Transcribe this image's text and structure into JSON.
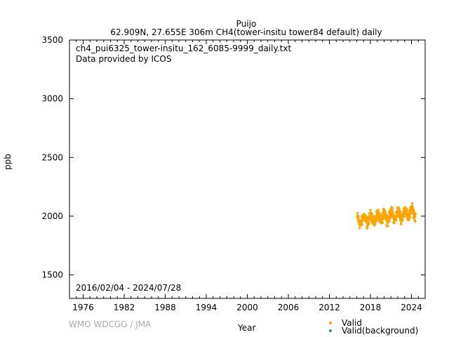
{
  "header": {
    "title_line1": "Puijo",
    "title_line2": "62.909N, 27.655E 306m    CH4(tower-insitu tower84 default) daily"
  },
  "annotations": {
    "filename": "ch4_pui6325_tower-insitu_162_6085-9999_daily.txt",
    "provider": "Data provided by ICOS",
    "date_range": "2016/02/04 - 2024/07/28"
  },
  "footer": {
    "watermark": "WMO WDCGG / JMA"
  },
  "legend": {
    "items": [
      {
        "label": "Valid",
        "color": "#FFA500",
        "marker": "diamond"
      },
      {
        "label": "Valid(background)",
        "color": "#2E8B57",
        "marker": "diamond"
      }
    ]
  },
  "chart_data": {
    "type": "scatter",
    "xlabel": "Year",
    "ylabel": "ppb",
    "xlim": [
      1974,
      2026
    ],
    "ylim": [
      1300,
      3500
    ],
    "x_ticks": [
      1976,
      1982,
      1988,
      1994,
      2000,
      2006,
      2012,
      2018,
      2024
    ],
    "y_ticks": [
      1500,
      2000,
      2500,
      3000,
      3500
    ],
    "grid": false,
    "legend_position": "bottom-right, outside plot",
    "series": [
      {
        "name": "Valid",
        "color": "#FFA500",
        "x_start": 2016.09,
        "x_end": 2024.57,
        "trend_start_ppb": 1960,
        "trend_slope_ppb_per_year": 8.5,
        "seasonal_amplitude_ppb": 35,
        "scatter_ppb": 25,
        "points_per_year": 60
      },
      {
        "name": "Valid(background)",
        "color": "#2E8B57",
        "values": []
      }
    ]
  }
}
